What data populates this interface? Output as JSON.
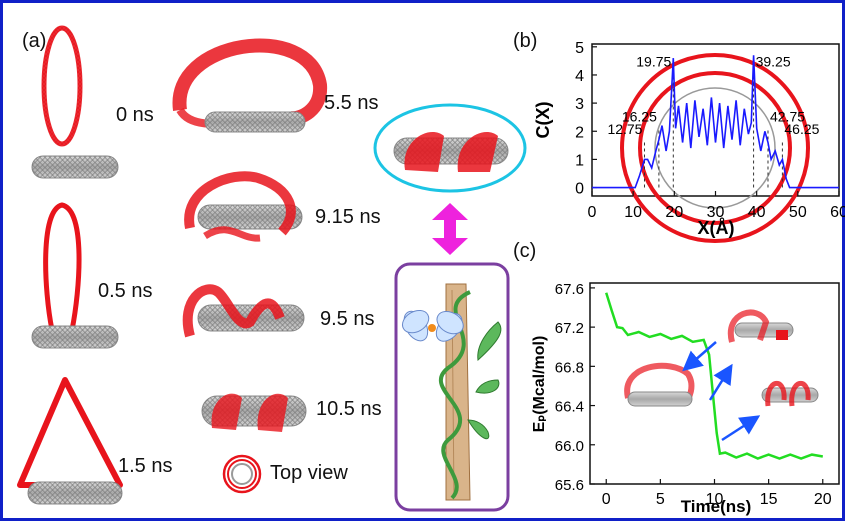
{
  "figure": {
    "panel_a": {
      "letter": "(a)",
      "times": [
        "0 ns",
        "5.5 ns",
        "0.5 ns",
        "9.15 ns",
        "9.5 ns",
        "1.5 ns",
        "10.5 ns"
      ],
      "top_view_label": "Top view"
    },
    "colors": {
      "frame": "#1020c8",
      "ribbon": "#e8141c",
      "tube": "#9a9a9a",
      "cnt_line": "#1a1aff",
      "energy": "#22dd22",
      "ellipse": "#1cc4e4",
      "plant_box": "#7b3fa0",
      "arrow": "#ee22dd"
    },
    "chart_data": [
      {
        "panel": "(b)",
        "type": "line",
        "xlabel": "X(Å)",
        "ylabel": "C(X)",
        "xlim": [
          0,
          60
        ],
        "ylim": [
          -0.3,
          5.1
        ],
        "xticks": [
          "0",
          "10",
          "20",
          "30",
          "40",
          "50",
          "60"
        ],
        "yticks": [
          "0",
          "1",
          "2",
          "3",
          "4",
          "5"
        ],
        "annotations": [
          "12.75",
          "16.25",
          "19.75",
          "39.25",
          "42.75",
          "46.25"
        ],
        "series": [
          {
            "x": [
              0,
              10.5,
              11.5,
              12.75,
              13.5,
              14.5,
              15.5,
              16.25,
              17,
              18,
              18.8,
              19.75,
              20.3,
              21,
              22,
              23,
              24,
              25,
              26,
              27,
              28,
              29,
              30,
              31,
              32,
              33,
              34,
              35,
              36,
              37,
              38,
              38.7,
              39.25,
              40,
              41,
              42,
              42.75,
              43.5,
              44.5,
              45.5,
              46.25,
              47.2,
              48,
              60
            ],
            "values": [
              0,
              0,
              0.4,
              1.0,
              1.0,
              0.7,
              1.3,
              1.7,
              2.2,
              1.3,
              2.0,
              4.6,
              2.1,
              2.9,
              1.6,
              3.0,
              1.4,
              3.1,
              1.8,
              2.8,
              1.5,
              3.2,
              1.6,
              3.0,
              1.4,
              2.9,
              1.7,
              3.1,
              1.5,
              2.8,
              1.9,
              2.3,
              4.7,
              2.1,
              1.3,
              2.0,
              1.6,
              1.0,
              1.3,
              0.8,
              1.0,
              0.3,
              0,
              0
            ]
          }
        ]
      },
      {
        "panel": "(c)",
        "type": "line",
        "xlabel": "Time(ns)",
        "ylabel": "Eₚ(Mcal/mol)",
        "xlim": [
          -1.5,
          21.5
        ],
        "ylim": [
          65.6,
          67.65
        ],
        "xticks": [
          "0",
          "5",
          "10",
          "15",
          "20"
        ],
        "yticks": [
          "65.6",
          "66.0",
          "66.4",
          "66.8",
          "67.2",
          "67.6"
        ],
        "series": [
          {
            "x": [
              0,
              0.5,
              1,
              1.5,
              2,
              3,
              4,
              5,
              6,
              7,
              8,
              9,
              9.3,
              9.5,
              9.8,
              10.2,
              10.5,
              11,
              12,
              13,
              14,
              15,
              16,
              17,
              18,
              19,
              20
            ],
            "values": [
              67.55,
              67.35,
              67.22,
              67.17,
              67.14,
              67.13,
              67.12,
              67.11,
              67.1,
              67.09,
              67.07,
              67.05,
              67.0,
              66.9,
              66.6,
              66.1,
              65.93,
              65.9,
              65.89,
              65.89,
              65.88,
              65.88,
              65.88,
              65.88,
              65.88,
              65.88,
              65.88
            ]
          }
        ]
      }
    ]
  }
}
